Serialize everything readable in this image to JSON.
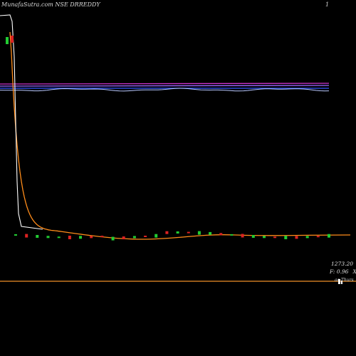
{
  "header": {
    "title": "MunafaSutra.com NSE DRREDDY",
    "aux": "1",
    "watermark": "munafaSutra.com"
  },
  "labels": {
    "price": "1273.20",
    "stat_f": "F: 0.96",
    "stat_x": "X",
    "date": "ac Thurs"
  },
  "colors": {
    "background": "#000000",
    "price_line": "#ffffff",
    "ma_long": "#ff8c1a",
    "ma_overlay_magenta": "#cc33cc",
    "ma_overlay_violet": "#9966ff",
    "ma_overlay_blue": "#3355ff",
    "band_line": "#b8c8ff",
    "baseline": "#c87820",
    "candle_up": "#22cc33",
    "candle_down": "#dd2222"
  },
  "chart_data": {
    "type": "line",
    "title": "MunafaSutra.com NSE DRREDDY",
    "price_label": 1273.2,
    "series": [
      {
        "role": "price",
        "color": "#ffffff",
        "values": [
          6250,
          6240,
          6150,
          1285,
          1288,
          1292,
          1286,
          1284,
          1290,
          1289
        ]
      },
      {
        "role": "moving-average",
        "color": "#ff8c1a",
        "values": [
          6250,
          5000,
          2900,
          1700,
          1350,
          1300,
          1290,
          1285,
          1284,
          1283
        ]
      }
    ],
    "reference_lines": [
      {
        "color": "#cc33cc"
      },
      {
        "color": "#9966ff"
      },
      {
        "color": "#3355ff"
      },
      {
        "color": "#b8c8ff"
      }
    ],
    "candles": [
      {
        "dir": "up"
      },
      {
        "dir": "down"
      },
      {
        "dir": "up"
      },
      {
        "dir": "up"
      },
      {
        "dir": "up"
      },
      {
        "dir": "down"
      },
      {
        "dir": "up"
      },
      {
        "dir": "down"
      },
      {
        "dir": "down"
      },
      {
        "dir": "up"
      },
      {
        "dir": "down"
      },
      {
        "dir": "up"
      },
      {
        "dir": "down"
      },
      {
        "dir": "up"
      },
      {
        "dir": "down"
      },
      {
        "dir": "up"
      },
      {
        "dir": "down"
      },
      {
        "dir": "up"
      },
      {
        "dir": "up"
      },
      {
        "dir": "down"
      },
      {
        "dir": "up"
      },
      {
        "dir": "down"
      },
      {
        "dir": "up"
      },
      {
        "dir": "up"
      },
      {
        "dir": "down"
      },
      {
        "dir": "up"
      },
      {
        "dir": "down"
      },
      {
        "dir": "up"
      },
      {
        "dir": "down"
      },
      {
        "dir": "up"
      }
    ]
  }
}
